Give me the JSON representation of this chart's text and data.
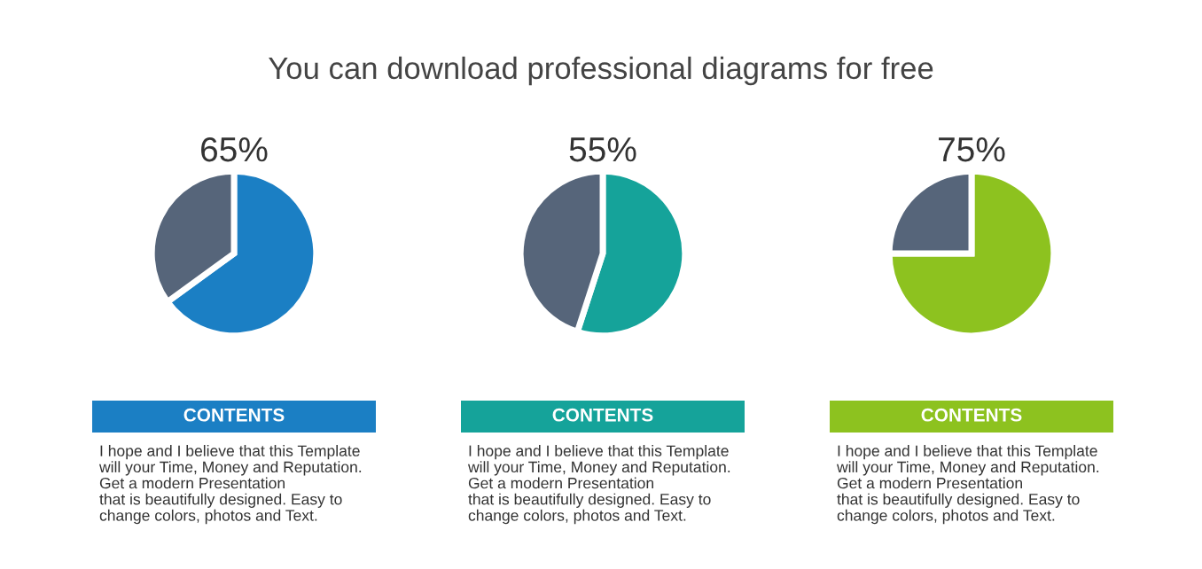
{
  "chart_data": [
    {
      "type": "pie",
      "subtitle": "You can download professional diagrams for free",
      "title": "65%",
      "categories": [
        null,
        null
      ],
      "values": [
        65,
        35
      ],
      "colors": [
        "#1b7fc4",
        "#56657a"
      ],
      "annotations": [
        "CONTENTS",
        "I hope and I believe that this Template\nwill your Time, Money and Reputation.\nGet a modern Presentation\nthat is beautifully designed. Easy to\nchange colors, photos and Text."
      ]
    },
    {
      "type": "pie",
      "title": "55%",
      "categories": [
        null,
        null
      ],
      "values": [
        55,
        45
      ],
      "colors": [
        "#15a39a",
        "#56657a"
      ],
      "annotations": [
        "CONTENTS",
        "I hope and I believe that this Template\nwill your Time, Money and Reputation.\nGet a modern Presentation\nthat is beautifully designed. Easy to\nchange colors, photos and Text."
      ]
    },
    {
      "type": "pie",
      "title": "75%",
      "categories": [
        null,
        null
      ],
      "values": [
        75,
        25
      ],
      "colors": [
        "#8dc21f",
        "#56657a"
      ],
      "annotations": [
        "CONTENTS",
        "I hope and I believe that this Template\nwill your Time, Money and Reputation.\nGet a modern Presentation\nthat is beautifully designed. Easy to\nchange colors, photos and Text."
      ]
    }
  ]
}
